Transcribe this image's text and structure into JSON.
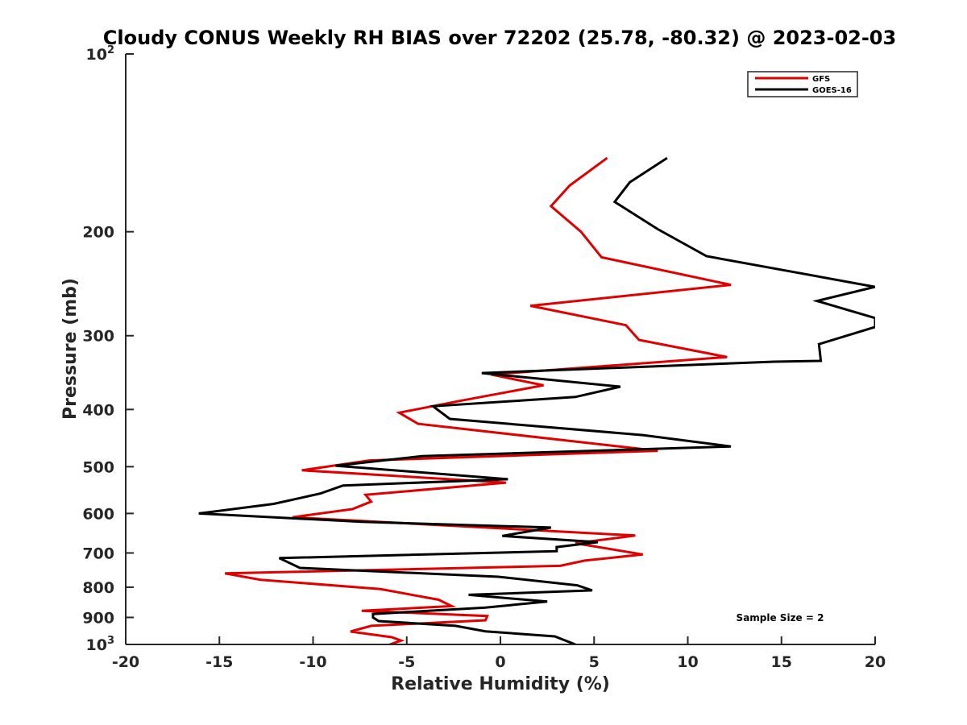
{
  "chart_data": {
    "type": "line",
    "title": "Cloudy CONUS Weekly RH BIAS over 72202 (25.78, -80.32) @ 2023-02-03",
    "xlabel": "Relative Humidity (%)",
    "ylabel": "Pressure (mb)",
    "xlim": [
      -20,
      20
    ],
    "ylim": [
      100,
      1000
    ],
    "y_scale": "log",
    "y_direction": "reversed",
    "grid": false,
    "legend_position": "top-right",
    "x_ticks": [
      "-20",
      "-15",
      "-10",
      "-5",
      "0",
      "5",
      "10",
      "15",
      "20"
    ],
    "y_ticks": [
      {
        "value": 100,
        "base": "10",
        "exp": "2"
      },
      {
        "value": 200,
        "label": "200"
      },
      {
        "value": 300,
        "label": "300"
      },
      {
        "value": 400,
        "label": "400"
      },
      {
        "value": 500,
        "label": "500"
      },
      {
        "value": 600,
        "label": "600"
      },
      {
        "value": 700,
        "label": "700"
      },
      {
        "value": 800,
        "label": "800"
      },
      {
        "value": 900,
        "label": "900"
      },
      {
        "value": 1000,
        "base": "10",
        "exp": "3"
      }
    ],
    "series": [
      {
        "name": "GFS",
        "color": "#e00000",
        "x": [
          5.7,
          3.7,
          2.7,
          4.3,
          5.4,
          12.3,
          1.6,
          6.7,
          7.4,
          12.1,
          -0.5,
          2.3,
          -2.2,
          -5.4,
          -4.4,
          8.4,
          -7.0,
          -10.6,
          0.3,
          -7.2,
          -6.9,
          -7.9,
          -11.1,
          7.2,
          4.0,
          7.6,
          4.5,
          3.2,
          -14.7,
          -12.8,
          -6.4,
          -3.3,
          -2.6,
          -7.4,
          -0.7,
          -0.8,
          -6.9,
          -8.0,
          -5.8,
          -5.3,
          -5.9
        ],
        "y": [
          150,
          167,
          181,
          200,
          221,
          246,
          267,
          288,
          305,
          326,
          349,
          364,
          387,
          405,
          423,
          470,
          488,
          507,
          532,
          558,
          573,
          590,
          609,
          654,
          674,
          704,
          721,
          736,
          758,
          777,
          806,
          840,
          861,
          877,
          895,
          910,
          930,
          951,
          972,
          985,
          1000
        ]
      },
      {
        "name": "GOES-16",
        "color": "#000000",
        "x": [
          8.9,
          6.9,
          6.1,
          8.4,
          11.0,
          20.0,
          16.9,
          20.0,
          20.0,
          17.0,
          17.1,
          14.6,
          -1.0,
          6.4,
          4.0,
          -3.6,
          -2.7,
          7.6,
          12.3,
          -4.2,
          -8.8,
          0.4,
          -8.4,
          -9.6,
          -12.1,
          -16.1,
          -7.4,
          2.7,
          0.1,
          5.2,
          3.0,
          3.0,
          -11.8,
          -10.7,
          -0.1,
          4.1,
          4.9,
          -1.7,
          2.5,
          -0.8,
          -6.8,
          -6.8,
          -6.5,
          -2.4,
          -0.8,
          2.9,
          4.0
        ],
        "y": [
          150,
          165,
          178,
          198,
          220,
          248,
          262,
          280,
          290,
          310,
          331,
          332,
          347,
          366,
          381,
          395,
          415,
          442,
          462,
          480,
          498,
          525,
          538,
          555,
          578,
          600,
          620,
          634,
          655,
          671,
          684,
          695,
          714,
          742,
          768,
          794,
          810,
          824,
          846,
          866,
          888,
          900,
          913,
          930,
          950,
          969,
          1000
        ]
      }
    ],
    "annotations": [
      "Sample Size = 2"
    ]
  }
}
